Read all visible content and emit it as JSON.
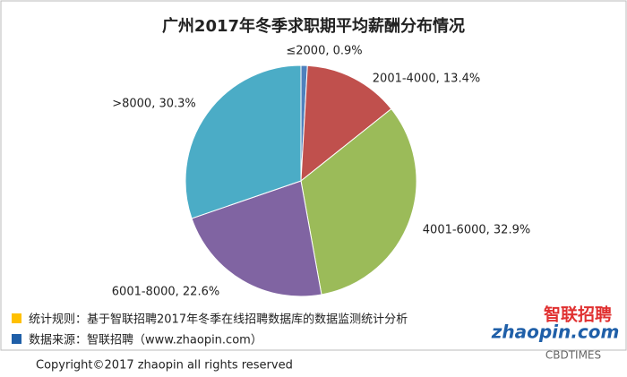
{
  "chart_data": {
    "type": "pie",
    "title": "广州2017年冬季求职期平均薪酬分布情况",
    "labels": [
      "≤2000, 0.9%",
      "2001-4000, 13.4%",
      "4001-6000, 32.9%",
      "6001-8000, 22.6%",
      ">8000, 30.3%"
    ],
    "values": [
      0.9,
      13.4,
      32.9,
      22.6,
      30.3
    ],
    "colors": [
      "#4f81bd",
      "#c0504d",
      "#9bbb59",
      "#8064a2",
      "#4bacc6"
    ]
  },
  "notes": [
    "统计规则：基于智联招聘2017年冬季在线招聘数据库的数据监测统计分析",
    "数据来源：智联招聘（www.zhaopin.com）"
  ],
  "note_colors": [
    "#ffc000",
    "#1f5fa8"
  ],
  "logo": {
    "cn": "智联招聘",
    "en": "zhaopin.com"
  },
  "watermark": "CBDTIMES",
  "copyright": "Copyright©2017 zhaopin all rights reserved"
}
